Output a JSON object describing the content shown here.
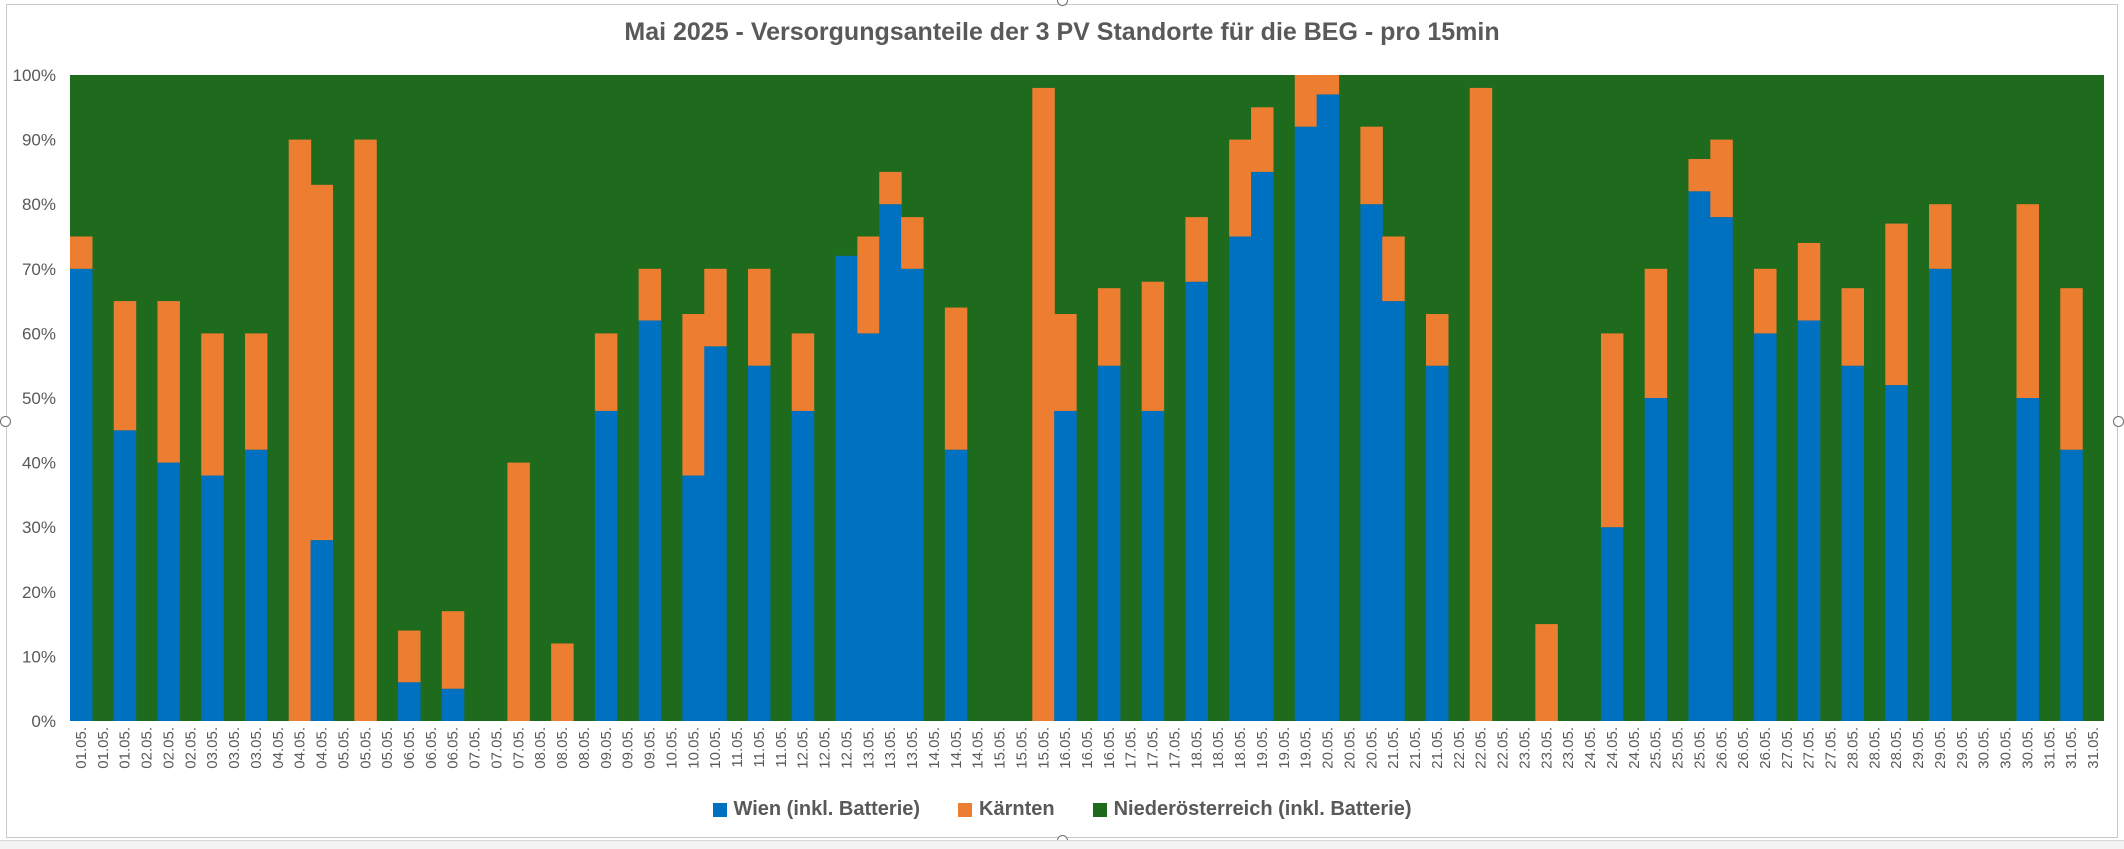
{
  "chart_data": {
    "type": "area",
    "stacked": "percent",
    "title": "Mai 2025 - Versorgungsanteile der 3 PV Standorte für die BEG - pro 15min",
    "xlabel": "",
    "ylabel": "",
    "ylim": [
      0,
      100
    ],
    "y_ticks": [
      "0%",
      "10%",
      "20%",
      "30%",
      "40%",
      "50%",
      "60%",
      "70%",
      "80%",
      "90%",
      "100%"
    ],
    "x_tick_labels": [
      "01.05.",
      "01.05.",
      "01.05.",
      "02.05.",
      "02.05.",
      "02.05.",
      "03.05.",
      "03.05.",
      "03.05.",
      "04.05.",
      "04.05.",
      "04.05.",
      "05.05.",
      "05.05.",
      "05.05.",
      "06.05.",
      "06.05.",
      "06.05.",
      "07.05.",
      "07.05.",
      "07.05.",
      "08.05.",
      "08.05.",
      "08.05.",
      "09.05.",
      "09.05.",
      "09.05.",
      "10.05.",
      "10.05.",
      "10.05.",
      "11.05.",
      "11.05.",
      "11.05.",
      "12.05.",
      "12.05.",
      "12.05.",
      "13.05.",
      "13.05.",
      "13.05.",
      "14.05.",
      "14.05.",
      "14.05.",
      "15.05.",
      "15.05.",
      "15.05.",
      "16.05.",
      "16.05.",
      "16.05.",
      "17.05.",
      "17.05.",
      "17.05.",
      "18.05.",
      "18.05.",
      "18.05.",
      "19.05.",
      "19.05.",
      "19.05.",
      "20.05.",
      "20.05.",
      "20.05.",
      "21.05.",
      "21.05.",
      "21.05.",
      "22.05.",
      "22.05.",
      "22.05.",
      "23.05.",
      "23.05.",
      "23.05.",
      "24.05.",
      "24.05.",
      "24.05.",
      "25.05.",
      "25.05.",
      "25.05.",
      "26.05.",
      "26.05.",
      "26.05.",
      "27.05.",
      "27.05.",
      "27.05.",
      "28.05.",
      "28.05.",
      "28.05.",
      "29.05.",
      "29.05.",
      "29.05.",
      "30.05.",
      "30.05.",
      "30.05.",
      "31.05.",
      "31.05.",
      "31.05."
    ],
    "series": [
      {
        "name": "Wien (inkl. Batterie)",
        "color": "#0070C0"
      },
      {
        "name": "Kärnten",
        "color": "#ED7D31"
      },
      {
        "name": "Niederösterreich (inkl. Batterie)",
        "color": "#1E6B1E"
      }
    ],
    "x_units": "interval group (3 per day, 31 days)",
    "wien_percent": [
      70,
      0,
      45,
      0,
      40,
      0,
      38,
      0,
      42,
      0,
      0,
      28,
      0,
      0,
      0,
      6,
      0,
      5,
      0,
      0,
      0,
      0,
      0,
      0,
      48,
      0,
      62,
      0,
      38,
      58,
      0,
      55,
      0,
      48,
      0,
      72,
      60,
      80,
      70,
      0,
      42,
      0,
      0,
      0,
      0,
      48,
      0,
      55,
      0,
      48,
      0,
      68,
      0,
      75,
      85,
      0,
      92,
      97,
      0,
      80,
      65,
      0,
      55,
      0,
      0,
      0,
      0,
      0,
      0,
      0,
      30,
      0,
      50,
      0,
      82,
      78,
      0,
      60,
      0,
      62,
      0,
      55,
      0,
      52,
      0,
      70,
      0,
      0,
      0,
      50,
      0,
      42,
      0
    ],
    "kaernten_percent": [
      5,
      0,
      20,
      0,
      25,
      0,
      22,
      0,
      18,
      0,
      90,
      55,
      0,
      90,
      0,
      8,
      0,
      12,
      0,
      0,
      40,
      0,
      12,
      0,
      12,
      0,
      8,
      0,
      25,
      12,
      0,
      15,
      0,
      12,
      0,
      0,
      15,
      5,
      8,
      0,
      22,
      0,
      0,
      0,
      98,
      15,
      0,
      12,
      0,
      20,
      0,
      10,
      0,
      15,
      10,
      0,
      8,
      3,
      0,
      12,
      10,
      0,
      8,
      0,
      98,
      0,
      0,
      15,
      0,
      0,
      30,
      0,
      20,
      0,
      5,
      12,
      0,
      10,
      0,
      12,
      0,
      12,
      0,
      25,
      0,
      10,
      0,
      0,
      0,
      30,
      0,
      25,
      0
    ]
  },
  "legend": {
    "wien": "Wien (inkl. Batterie)",
    "kaernten": "Kärnten",
    "noe": "Niederösterreich (inkl. Batterie)"
  }
}
